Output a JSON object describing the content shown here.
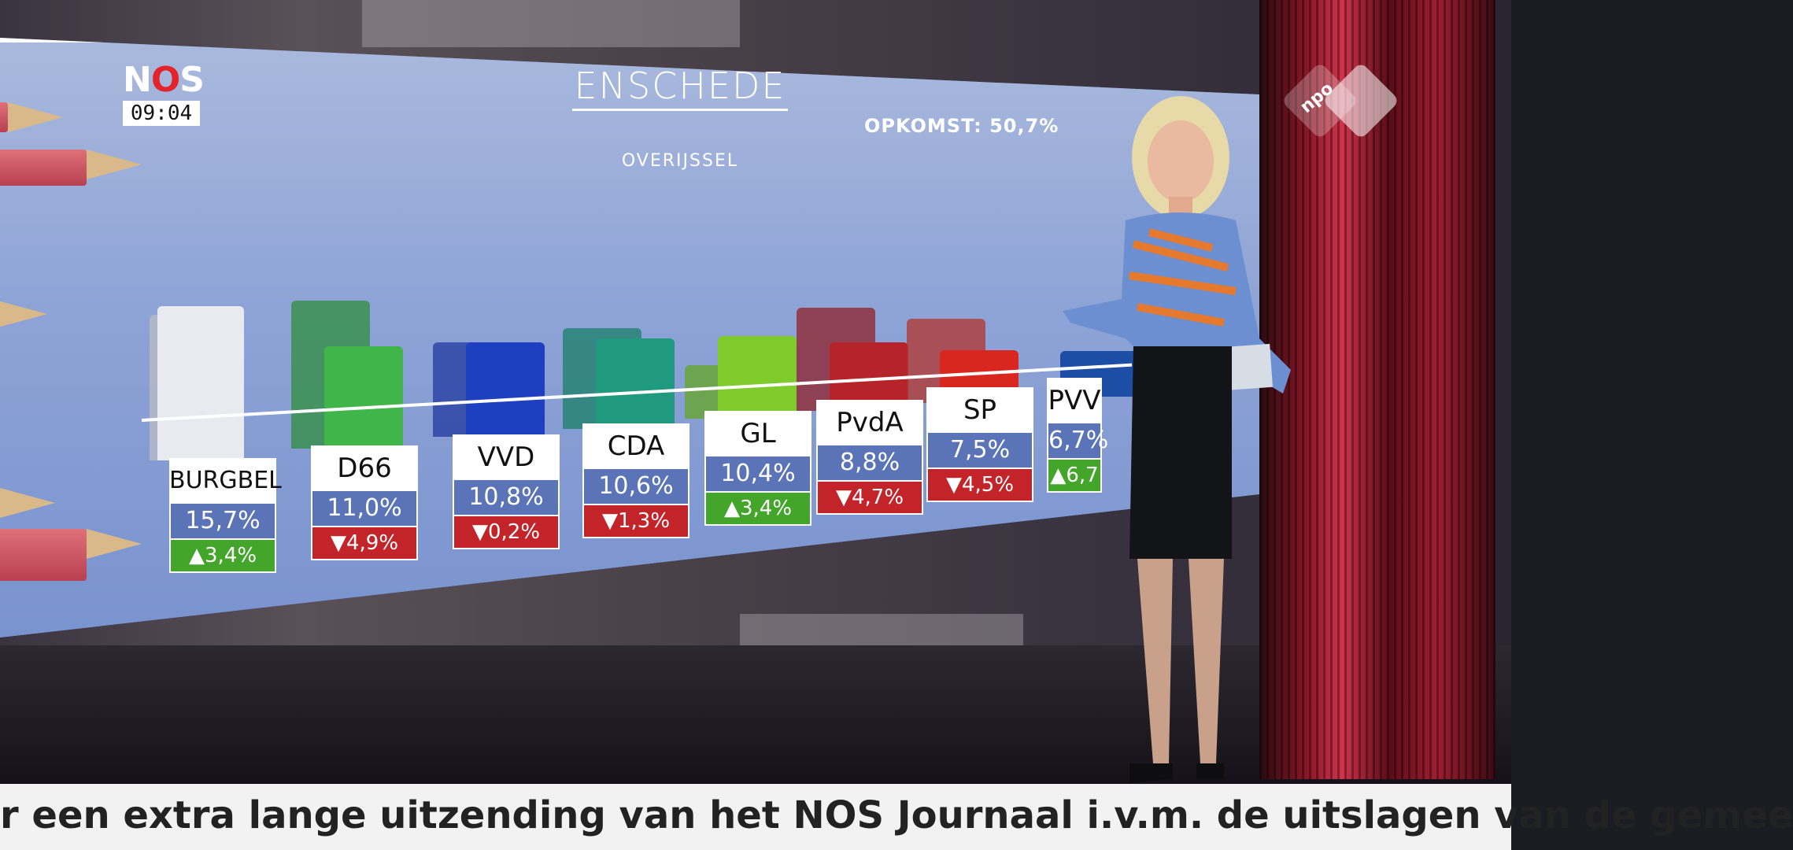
{
  "broadcaster": {
    "logo_text_n": "N",
    "logo_text_o": "O",
    "logo_text_s": "S",
    "time": "09:04"
  },
  "channel": {
    "logo_text": "npo"
  },
  "screen": {
    "title": "ENSCHEDE",
    "subtitle": "OVERIJSSEL",
    "turnout": "OPKOMST: 50,7%"
  },
  "parties": [
    {
      "name": "BURGBEL",
      "pct": "15,7%",
      "change": "3,4%",
      "direction": "up",
      "color": "#e9eaf0",
      "old_color": "#bcbcc6"
    },
    {
      "name": "D66",
      "pct": "11,0%",
      "change": "4,9%",
      "direction": "down",
      "color": "#3fb54a",
      "old_color": "#2f8e3d"
    },
    {
      "name": "VVD",
      "pct": "10,8%",
      "change": "0,2%",
      "direction": "down",
      "color": "#1e3fbf",
      "old_color": "#223aa0"
    },
    {
      "name": "CDA",
      "pct": "10,6%",
      "change": "1,3%",
      "direction": "down",
      "color": "#1f9a7f",
      "old_color": "#1b7e68"
    },
    {
      "name": "GL",
      "pct": "10,4%",
      "change": "3,4%",
      "direction": "up",
      "color": "#7fcb2b",
      "old_color": "#63a623"
    },
    {
      "name": "PvdA",
      "pct": "8,8%",
      "change": "4,7%",
      "direction": "down",
      "color": "#b7232b",
      "old_color": "#8f2128"
    },
    {
      "name": "SP",
      "pct": "7,5%",
      "change": "4,5%",
      "direction": "down",
      "color": "#d9261f",
      "old_color": "#b3342c"
    },
    {
      "name": "PVV",
      "pct": "6,7%",
      "change": "6,7",
      "direction": "up",
      "color": "#1c4ea6",
      "old_color": "#1a3f85"
    }
  ],
  "arrows": {
    "up": "▲",
    "down": "▼"
  },
  "ticker": {
    "text": "r een extra lange uitzending van het NOS Journaal i.v.m. de uitslagen van de gemee"
  }
}
